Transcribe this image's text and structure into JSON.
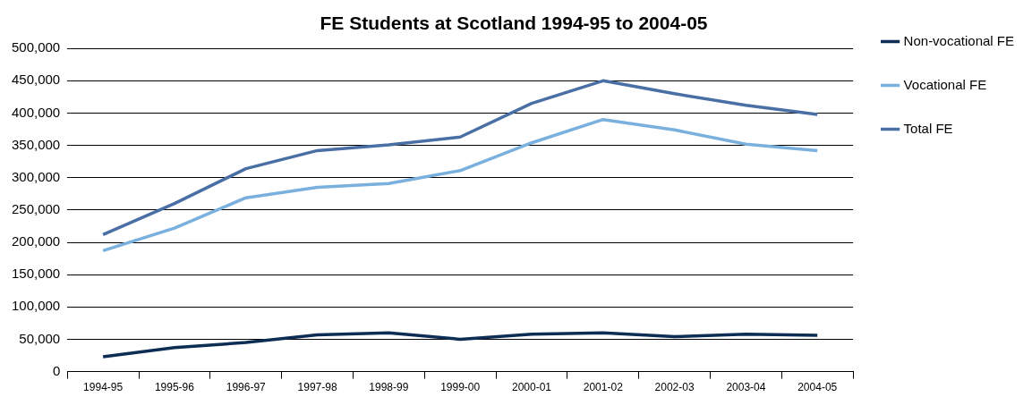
{
  "chart_data": {
    "type": "line",
    "title": "FE Students at Scotland 1994-95 to 2004-05",
    "categories": [
      "1994-95",
      "1995-96",
      "1996-97",
      "1997-98",
      "1998-99",
      "1999-00",
      "2000-01",
      "2001-02",
      "2002-03",
      "2003-04",
      "2004-05"
    ],
    "series": [
      {
        "name": "Non-vocational FE",
        "color": "#0d2d55",
        "values": [
          23000,
          37000,
          45000,
          57000,
          60000,
          50000,
          58000,
          60000,
          54000,
          58000,
          56000
        ]
      },
      {
        "name": "Vocational FE",
        "color": "#7ab0de",
        "values": [
          187000,
          222000,
          269000,
          285000,
          291000,
          311000,
          354000,
          390000,
          374000,
          352000,
          342000
        ]
      },
      {
        "name": "Total FE",
        "color": "#4a6fa5",
        "values": [
          212000,
          260000,
          314000,
          342000,
          351000,
          363000,
          415000,
          450000,
          430000,
          412000,
          398000
        ]
      }
    ],
    "ylim": [
      0,
      500000
    ],
    "yticks": [
      {
        "value": 0,
        "label": "0"
      },
      {
        "value": 50000,
        "label": "50,000"
      },
      {
        "value": 100000,
        "label": "100,000"
      },
      {
        "value": 150000,
        "label": "150,000"
      },
      {
        "value": 200000,
        "label": "200,000"
      },
      {
        "value": 250000,
        "label": "250,000"
      },
      {
        "value": 300000,
        "label": "300,000"
      },
      {
        "value": 350000,
        "label": "350,000"
      },
      {
        "value": 400000,
        "label": "400,000"
      },
      {
        "value": 450000,
        "label": "450,000"
      },
      {
        "value": 500000,
        "label": "500,000"
      }
    ],
    "grid": "y",
    "legend": "right",
    "marker": "none",
    "line_style": "solid"
  }
}
